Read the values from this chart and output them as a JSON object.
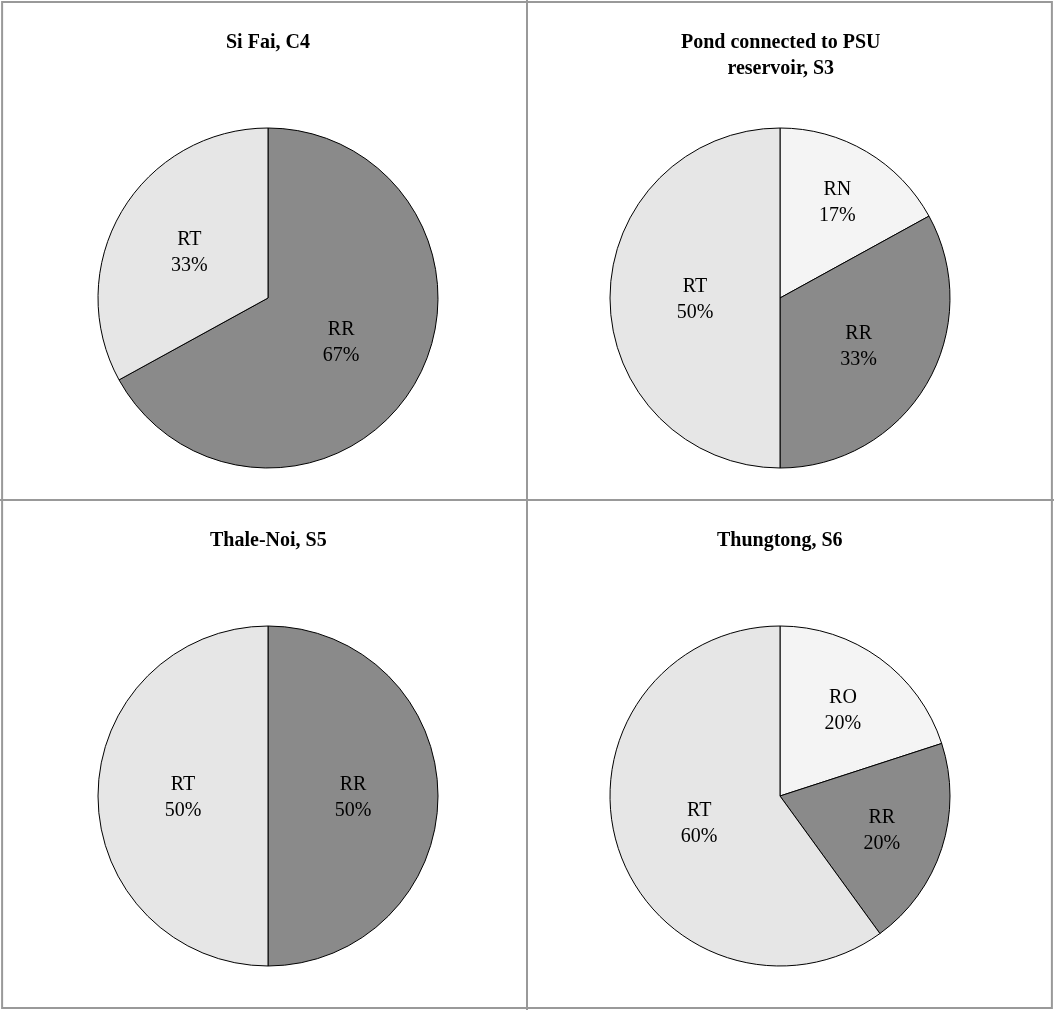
{
  "chart_data": [
    {
      "type": "pie",
      "title": "Si Fai, C4",
      "categories": [
        "RR",
        "RT"
      ],
      "values": [
        67,
        33
      ],
      "value_labels": [
        "67%",
        "33%"
      ],
      "colors": [
        "#8a8a8a",
        "#e6e6e6"
      ]
    },
    {
      "type": "pie",
      "title": "Pond connected to PSU reservoir, S3",
      "categories": [
        "RN",
        "RR",
        "RT"
      ],
      "values": [
        17,
        33,
        50
      ],
      "value_labels": [
        "17%",
        "33%",
        "50%"
      ],
      "colors": [
        "#f4f4f4",
        "#8a8a8a",
        "#e6e6e6"
      ]
    },
    {
      "type": "pie",
      "title": "Thale-Noi, S5",
      "categories": [
        "RR",
        "RT"
      ],
      "values": [
        50,
        50
      ],
      "value_labels": [
        "50%",
        "50%"
      ],
      "colors": [
        "#8a8a8a",
        "#e6e6e6"
      ]
    },
    {
      "type": "pie",
      "title": "Thungtong, S6",
      "categories": [
        "RO",
        "RR",
        "RT"
      ],
      "values": [
        20,
        20,
        60
      ],
      "value_labels": [
        "20%",
        "20%",
        "60%"
      ],
      "colors": [
        "#f4f4f4",
        "#8a8a8a",
        "#e6e6e6"
      ]
    }
  ]
}
